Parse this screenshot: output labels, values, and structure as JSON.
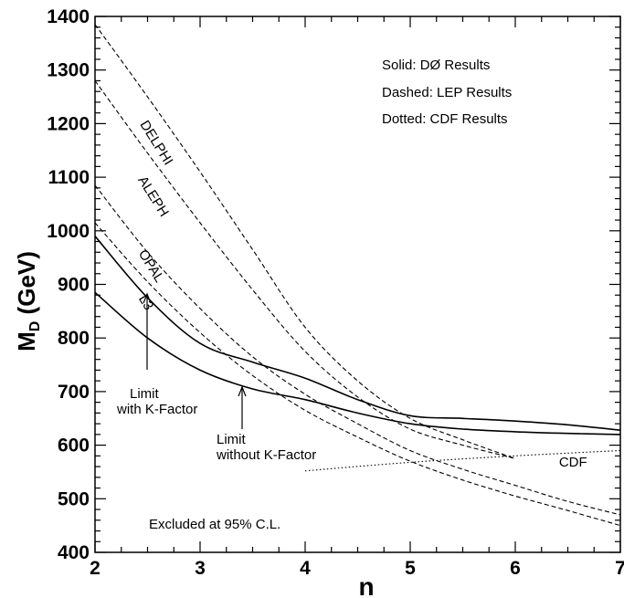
{
  "chart_data": {
    "type": "line",
    "xlabel": "n",
    "ylabel_main": "M",
    "ylabel_sub": "D",
    "ylabel_unit": "(GeV)",
    "xlim": [
      2,
      7
    ],
    "ylim": [
      400,
      1400
    ],
    "xticks": [
      "2",
      "3",
      "4",
      "5",
      "6",
      "7"
    ],
    "yticks": [
      "400",
      "500",
      "600",
      "700",
      "800",
      "900",
      "1000",
      "1100",
      "1200",
      "1300",
      "1400"
    ],
    "legend": [
      "Solid: DØ Results",
      "Dashed: LEP Results",
      "Dotted: CDF Results"
    ],
    "annotations": {
      "with_k": [
        "Limit",
        "with K-Factor"
      ],
      "without_k": [
        "Limit",
        "without K-Factor"
      ],
      "excluded": "Excluded at 95% C.L."
    },
    "series": [
      {
        "name": "",
        "group": "D0",
        "style": "solid",
        "x": [
          2,
          2.5,
          3,
          3.5,
          4,
          4.5,
          5,
          5.5,
          6,
          6.5,
          7
        ],
        "y": [
          990,
          875,
          790,
          755,
          725,
          685,
          655,
          650,
          645,
          638,
          628
        ]
      },
      {
        "name": "",
        "group": "D0",
        "style": "solid",
        "x": [
          2,
          2.5,
          3,
          3.5,
          4,
          4.5,
          5,
          5.5,
          6,
          6.5,
          7
        ],
        "y": [
          885,
          800,
          740,
          705,
          685,
          660,
          640,
          630,
          625,
          622,
          620
        ]
      },
      {
        "name": "DELPHI",
        "group": "LEP",
        "style": "dashed",
        "x": [
          2,
          2.5,
          3,
          3.5,
          4,
          4.5,
          5,
          5.5,
          6
        ],
        "y": [
          1385,
          1250,
          1110,
          965,
          820,
          720,
          650,
          610,
          575
        ]
      },
      {
        "name": "ALEPH",
        "group": "LEP",
        "style": "dashed",
        "x": [
          2,
          2.5,
          3,
          3.5,
          4,
          4.5,
          5,
          5.5,
          6
        ],
        "y": [
          1280,
          1145,
          1015,
          890,
          775,
          690,
          630,
          600,
          575
        ]
      },
      {
        "name": "OPAL",
        "group": "LEP",
        "style": "dashed",
        "x": [
          2,
          2.5,
          3,
          3.5,
          4,
          4.5,
          5,
          5.5,
          6,
          6.5,
          7
        ],
        "y": [
          1085,
          960,
          855,
          765,
          695,
          640,
          590,
          555,
          525,
          495,
          470
        ]
      },
      {
        "name": "L3",
        "group": "LEP",
        "style": "dashed",
        "x": [
          2,
          2.5,
          3,
          3.5,
          4,
          4.5,
          5,
          5.5,
          6,
          6.5,
          7
        ],
        "y": [
          1015,
          905,
          810,
          730,
          665,
          615,
          570,
          535,
          505,
          478,
          450
        ]
      },
      {
        "name": "CDF",
        "group": "CDF",
        "style": "dotted",
        "x": [
          4,
          5,
          6,
          7
        ],
        "y": [
          552,
          568,
          580,
          590
        ]
      }
    ]
  }
}
